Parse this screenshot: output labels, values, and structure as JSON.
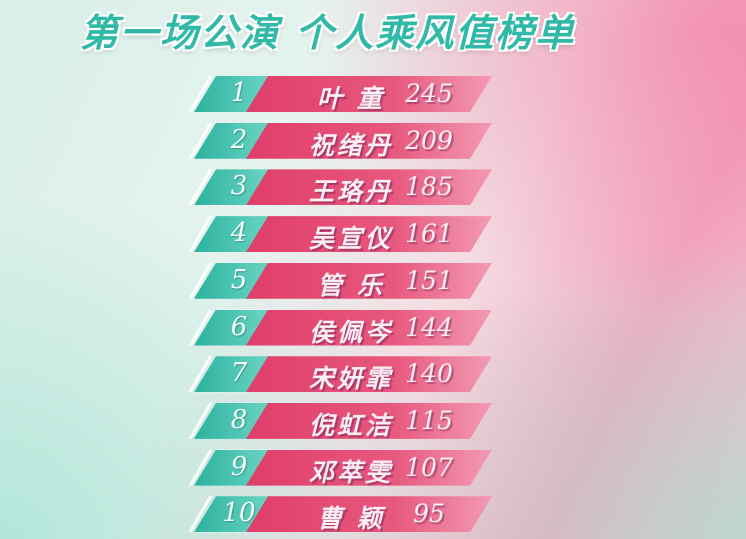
{
  "title": "第一场公演 个人乘风值榜单",
  "colors": {
    "rank_bg": "#2bb29e",
    "bar_bg": "#df3e6a",
    "title": "#2fb9a6"
  },
  "rows": [
    {
      "rank": "1",
      "name": "叶 童",
      "score": "245"
    },
    {
      "rank": "2",
      "name": "祝绪丹",
      "score": "209"
    },
    {
      "rank": "3",
      "name": "王珞丹",
      "score": "185"
    },
    {
      "rank": "4",
      "name": "吴宣仪",
      "score": "161"
    },
    {
      "rank": "5",
      "name": "管 乐",
      "score": "151"
    },
    {
      "rank": "6",
      "name": "侯佩岑",
      "score": "144"
    },
    {
      "rank": "7",
      "name": "宋妍霏",
      "score": "140"
    },
    {
      "rank": "8",
      "name": "倪虹洁",
      "score": "115"
    },
    {
      "rank": "9",
      "name": "邓萃雯",
      "score": "107"
    },
    {
      "rank": "10",
      "name": "曹 颖",
      "score": "95"
    }
  ]
}
